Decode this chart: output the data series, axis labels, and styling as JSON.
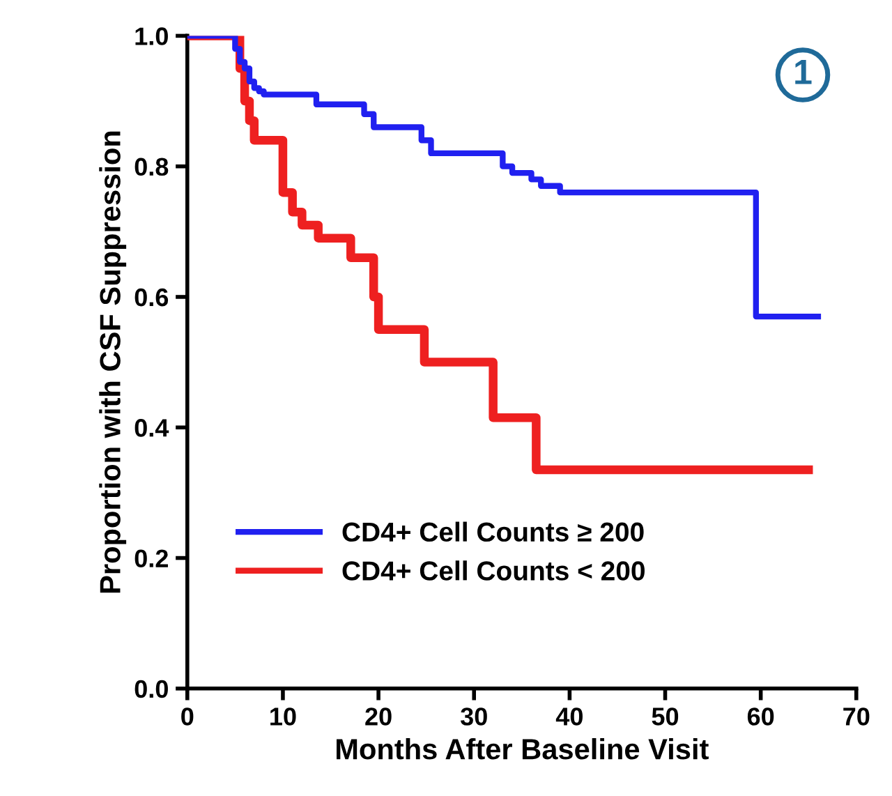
{
  "chart_data": {
    "type": "step",
    "xlabel": "Months After Baseline Visit",
    "ylabel": "Proportion with CSF Suppression",
    "xlim": [
      0,
      70
    ],
    "xticks": [
      0,
      10,
      20,
      30,
      40,
      50,
      60,
      70
    ],
    "ylim": [
      0,
      1.0
    ],
    "yticks": [
      {
        "value": 0,
        "label": "0.0"
      },
      0.2,
      0.4,
      0.6,
      0.8,
      {
        "value": 1.0,
        "label": "1.0"
      }
    ],
    "grid": false,
    "legend": "bottom left",
    "marker": "none",
    "line_style": "solid",
    "annotations": [
      "1"
    ],
    "series": [
      {
        "name": "CD4+ Cell Counts ≥ 200",
        "color": "#2020f0",
        "x": [
          0,
          5,
          5.5,
          6,
          6.5,
          7,
          7.5,
          8,
          13.5,
          18.5,
          19.5,
          24.5,
          25.5,
          33,
          34,
          36,
          37,
          39,
          59.5,
          66
        ],
        "values": [
          1.0,
          0.98,
          0.96,
          0.95,
          0.93,
          0.92,
          0.915,
          0.91,
          0.895,
          0.88,
          0.86,
          0.84,
          0.82,
          0.8,
          0.79,
          0.78,
          0.77,
          0.76,
          0.57,
          0.57
        ]
      },
      {
        "name": "CD4+ Cell Counts < 200",
        "color": "#ee2020",
        "x": [
          0,
          5.5,
          6,
          6.5,
          7,
          10,
          11,
          12,
          13.7,
          17.1,
          19.5,
          20,
          24.8,
          32,
          36.5,
          65
        ],
        "values": [
          1.0,
          0.95,
          0.9,
          0.87,
          0.84,
          0.76,
          0.73,
          0.71,
          0.69,
          0.66,
          0.6,
          0.55,
          0.5,
          0.415,
          0.335,
          0.335
        ]
      }
    ]
  }
}
